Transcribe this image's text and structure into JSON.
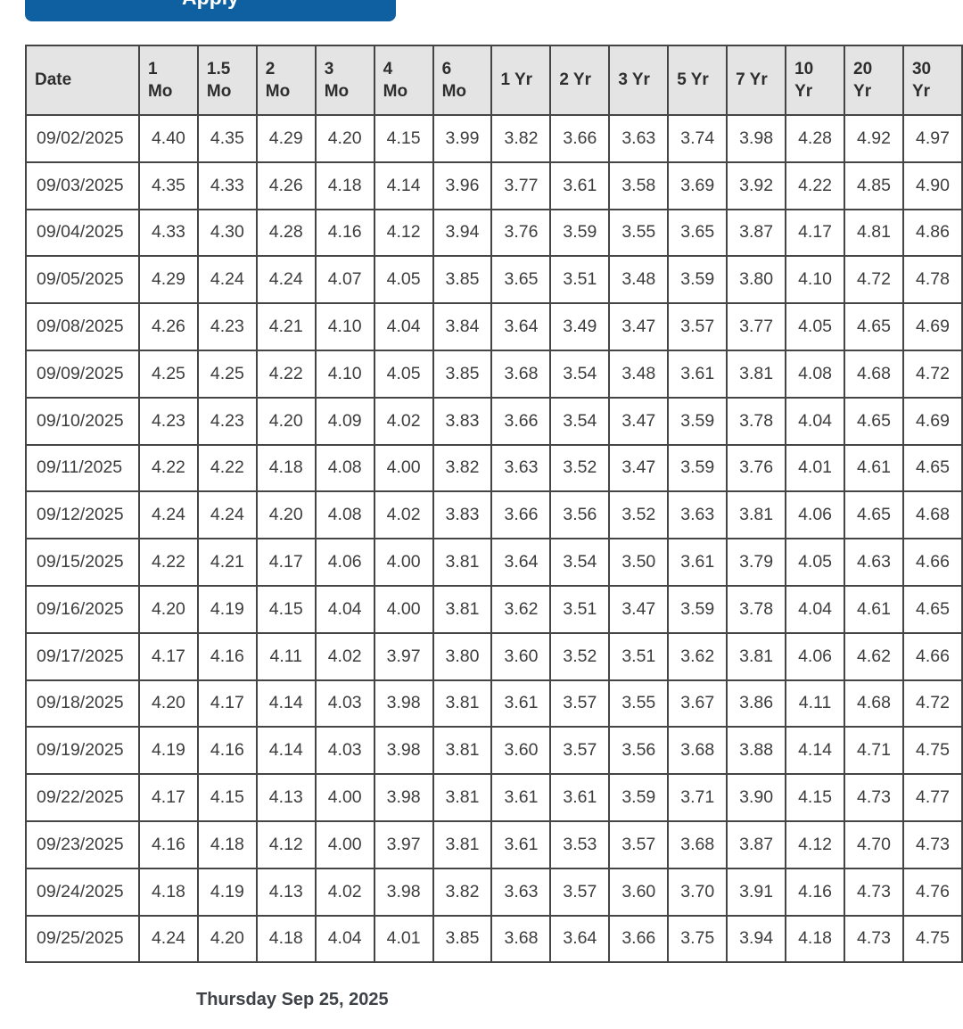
{
  "apply_button": {
    "label": "Apply"
  },
  "theme": {
    "button_blue": "#0f60a0",
    "header_bg": "#e4e4e4",
    "border_color": "#454545",
    "cell_text": "#3d3d3d"
  },
  "table": {
    "columns": [
      "Date",
      "1\nMo",
      "1.5\nMo",
      "2\nMo",
      "3\nMo",
      "4\nMo",
      "6\nMo",
      "1 Yr",
      "2 Yr",
      "3 Yr",
      "5 Yr",
      "7 Yr",
      "10\nYr",
      "20\nYr",
      "30\nYr"
    ],
    "rows": [
      [
        "09/02/2025",
        "4.40",
        "4.35",
        "4.29",
        "4.20",
        "4.15",
        "3.99",
        "3.82",
        "3.66",
        "3.63",
        "3.74",
        "3.98",
        "4.28",
        "4.92",
        "4.97"
      ],
      [
        "09/03/2025",
        "4.35",
        "4.33",
        "4.26",
        "4.18",
        "4.14",
        "3.96",
        "3.77",
        "3.61",
        "3.58",
        "3.69",
        "3.92",
        "4.22",
        "4.85",
        "4.90"
      ],
      [
        "09/04/2025",
        "4.33",
        "4.30",
        "4.28",
        "4.16",
        "4.12",
        "3.94",
        "3.76",
        "3.59",
        "3.55",
        "3.65",
        "3.87",
        "4.17",
        "4.81",
        "4.86"
      ],
      [
        "09/05/2025",
        "4.29",
        "4.24",
        "4.24",
        "4.07",
        "4.05",
        "3.85",
        "3.65",
        "3.51",
        "3.48",
        "3.59",
        "3.80",
        "4.10",
        "4.72",
        "4.78"
      ],
      [
        "09/08/2025",
        "4.26",
        "4.23",
        "4.21",
        "4.10",
        "4.04",
        "3.84",
        "3.64",
        "3.49",
        "3.47",
        "3.57",
        "3.77",
        "4.05",
        "4.65",
        "4.69"
      ],
      [
        "09/09/2025",
        "4.25",
        "4.25",
        "4.22",
        "4.10",
        "4.05",
        "3.85",
        "3.68",
        "3.54",
        "3.48",
        "3.61",
        "3.81",
        "4.08",
        "4.68",
        "4.72"
      ],
      [
        "09/10/2025",
        "4.23",
        "4.23",
        "4.20",
        "4.09",
        "4.02",
        "3.83",
        "3.66",
        "3.54",
        "3.47",
        "3.59",
        "3.78",
        "4.04",
        "4.65",
        "4.69"
      ],
      [
        "09/11/2025",
        "4.22",
        "4.22",
        "4.18",
        "4.08",
        "4.00",
        "3.82",
        "3.63",
        "3.52",
        "3.47",
        "3.59",
        "3.76",
        "4.01",
        "4.61",
        "4.65"
      ],
      [
        "09/12/2025",
        "4.24",
        "4.24",
        "4.20",
        "4.08",
        "4.02",
        "3.83",
        "3.66",
        "3.56",
        "3.52",
        "3.63",
        "3.81",
        "4.06",
        "4.65",
        "4.68"
      ],
      [
        "09/15/2025",
        "4.22",
        "4.21",
        "4.17",
        "4.06",
        "4.00",
        "3.81",
        "3.64",
        "3.54",
        "3.50",
        "3.61",
        "3.79",
        "4.05",
        "4.63",
        "4.66"
      ],
      [
        "09/16/2025",
        "4.20",
        "4.19",
        "4.15",
        "4.04",
        "4.00",
        "3.81",
        "3.62",
        "3.51",
        "3.47",
        "3.59",
        "3.78",
        "4.04",
        "4.61",
        "4.65"
      ],
      [
        "09/17/2025",
        "4.17",
        "4.16",
        "4.11",
        "4.02",
        "3.97",
        "3.80",
        "3.60",
        "3.52",
        "3.51",
        "3.62",
        "3.81",
        "4.06",
        "4.62",
        "4.66"
      ],
      [
        "09/18/2025",
        "4.20",
        "4.17",
        "4.14",
        "4.03",
        "3.98",
        "3.81",
        "3.61",
        "3.57",
        "3.55",
        "3.67",
        "3.86",
        "4.11",
        "4.68",
        "4.72"
      ],
      [
        "09/19/2025",
        "4.19",
        "4.16",
        "4.14",
        "4.03",
        "3.98",
        "3.81",
        "3.60",
        "3.57",
        "3.56",
        "3.68",
        "3.88",
        "4.14",
        "4.71",
        "4.75"
      ],
      [
        "09/22/2025",
        "4.17",
        "4.15",
        "4.13",
        "4.00",
        "3.98",
        "3.81",
        "3.61",
        "3.61",
        "3.59",
        "3.71",
        "3.90",
        "4.15",
        "4.73",
        "4.77"
      ],
      [
        "09/23/2025",
        "4.16",
        "4.18",
        "4.12",
        "4.00",
        "3.97",
        "3.81",
        "3.61",
        "3.53",
        "3.57",
        "3.68",
        "3.87",
        "4.12",
        "4.70",
        "4.73"
      ],
      [
        "09/24/2025",
        "4.18",
        "4.19",
        "4.13",
        "4.02",
        "3.98",
        "3.82",
        "3.63",
        "3.57",
        "3.60",
        "3.70",
        "3.91",
        "4.16",
        "4.73",
        "4.76"
      ],
      [
        "09/25/2025",
        "4.24",
        "4.20",
        "4.18",
        "4.04",
        "4.01",
        "3.85",
        "3.68",
        "3.64",
        "3.66",
        "3.75",
        "3.94",
        "4.18",
        "4.73",
        "4.75"
      ]
    ]
  },
  "footer": {
    "selected_date": "Thursday Sep 25, 2025"
  }
}
